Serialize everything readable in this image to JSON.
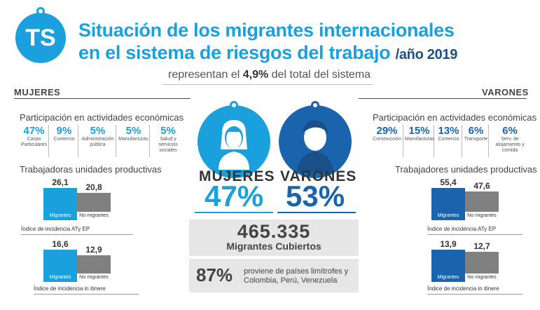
{
  "header": {
    "logo": "TS",
    "title_line1": "Situación de los migrantes internacionales",
    "title_line2": "en el sistema de riesgos del trabajo",
    "year": "/año 2019",
    "subtitle_prefix": "representan el ",
    "subtitle_bold": "4,9%",
    "subtitle_suffix": " del total del sistema"
  },
  "mujeres": {
    "section_label": "MUJERES",
    "participation_title": "Participación en actividades económicas",
    "activities": [
      {
        "pct": "47%",
        "label": "Casas Particulares"
      },
      {
        "pct": "9%",
        "label": "Comercio"
      },
      {
        "pct": "5%",
        "label": "Administración pública"
      },
      {
        "pct": "5%",
        "label": "Manufacturas"
      },
      {
        "pct": "5%",
        "label": "Salud y servicios sociales"
      }
    ],
    "units_title": "Trabajadoras unidades productivas",
    "incidence_ate": {
      "migrantes": 26.1,
      "migrantes_label": "26,1",
      "no_migrantes": 20.8,
      "no_migrantes_label": "20,8",
      "title": "Índice de incidencia ATy EP"
    },
    "incidence_itinere": {
      "migrantes": 16.6,
      "migrantes_label": "16,6",
      "no_migrantes": 12.9,
      "no_migrantes_label": "12,9",
      "title": "Índice de incidencia in itinere"
    },
    "big_label": "MUJERES",
    "big_pct": "47%"
  },
  "varones": {
    "section_label": "VARONES",
    "participation_title": "Participación en actividades económicas",
    "activities": [
      {
        "pct": "29%",
        "label": "Construcción"
      },
      {
        "pct": "15%",
        "label": "Manufacturas"
      },
      {
        "pct": "13%",
        "label": "Comercio"
      },
      {
        "pct": "6%",
        "label": "Transporte"
      },
      {
        "pct": "6%",
        "label": "Serv. de alojamiento y comida"
      }
    ],
    "units_title": "Trabajadores unidades productivas",
    "incidence_ate": {
      "migrantes": 55.4,
      "migrantes_label": "55,4",
      "no_migrantes": 47.6,
      "no_migrantes_label": "47,6",
      "title": "Índice de incidencia ATy EP"
    },
    "incidence_itinere": {
      "migrantes": 13.9,
      "migrantes_label": "13,9",
      "no_migrantes": 12.7,
      "no_migrantes_label": "12,7",
      "title": "Índice de incidencia in itinere"
    },
    "big_label": "VARONES",
    "big_pct": "53%"
  },
  "bar_labels": {
    "migrantes": "Migrantes",
    "no_migrantes": "No migrantes"
  },
  "totals": {
    "number": "465.335",
    "label": "Migrantes Cubiertos",
    "limitrofes_pct": "87%",
    "limitrofes_text": "proviene de países limítrofes y Colombia, Perú, Venezuela"
  },
  "colors": {
    "light_blue": "#1aa0dc",
    "dark_blue": "#1a64ad",
    "gray": "#808080"
  }
}
